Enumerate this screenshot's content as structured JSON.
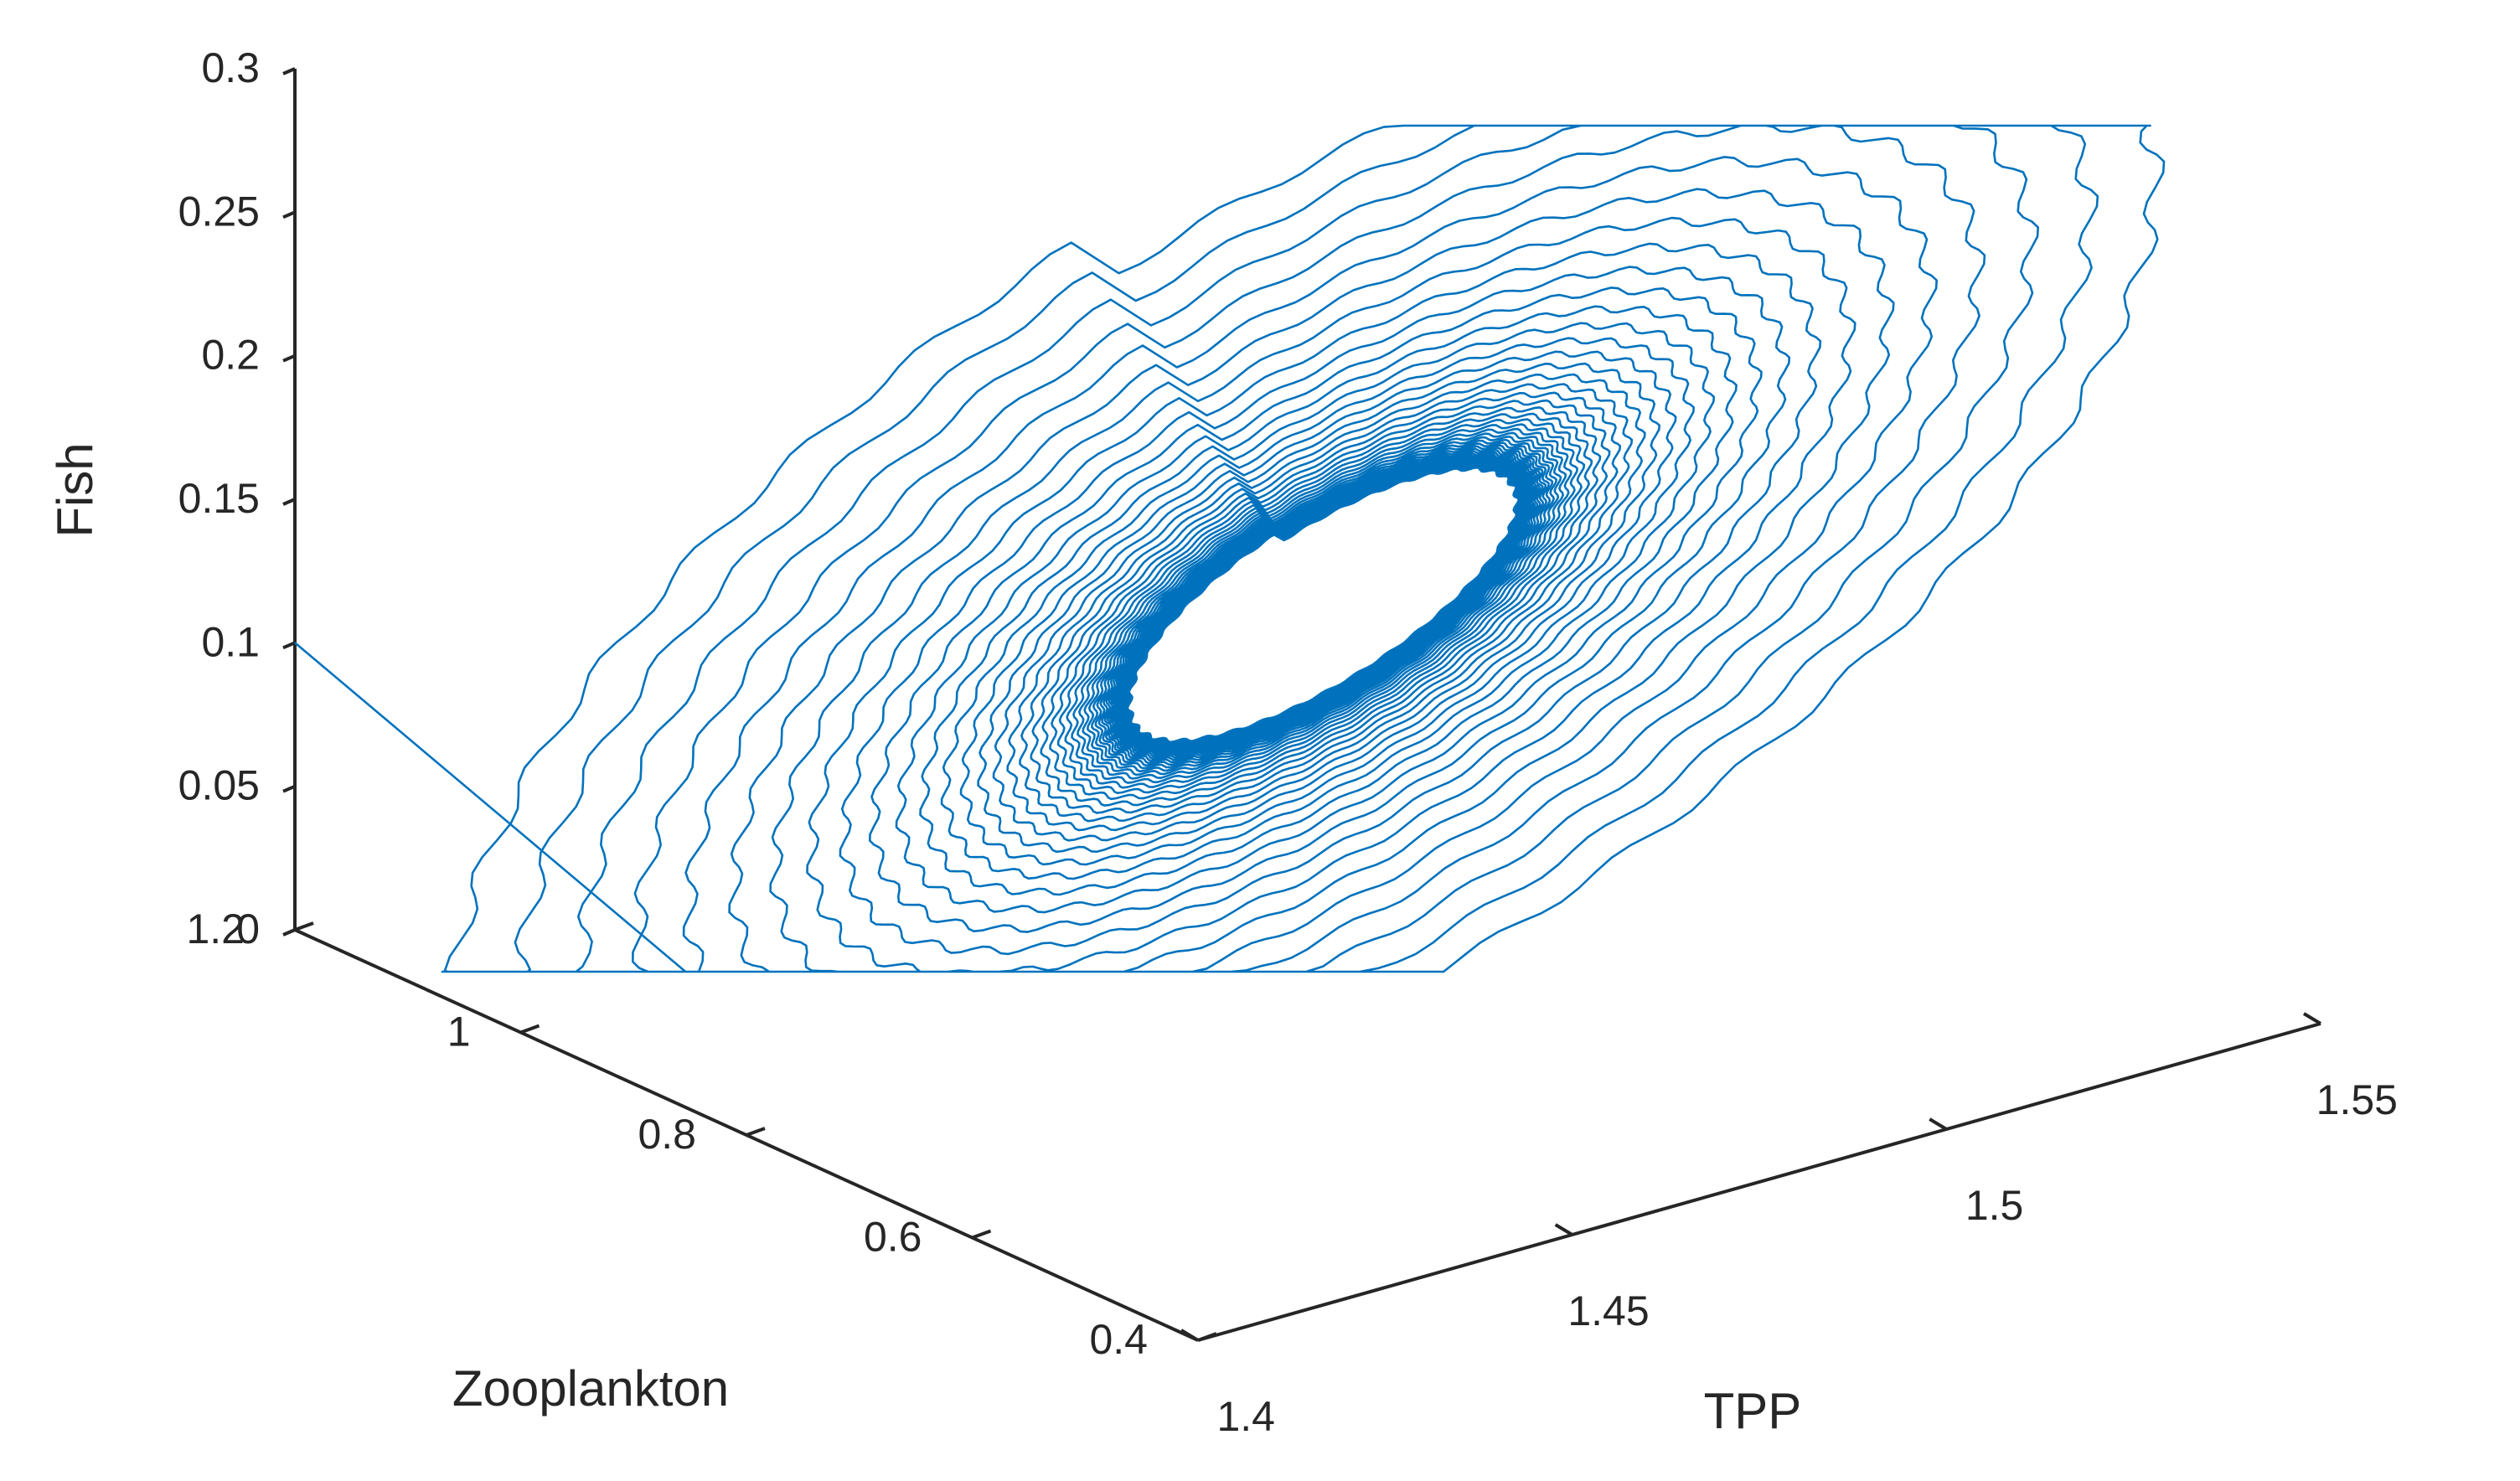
{
  "chart_data": {
    "type": "line",
    "projection": "3d",
    "xlabel": "TPP",
    "ylabel": "Zooplankton",
    "zlabel": "Fish",
    "xlim": [
      1.4,
      1.55
    ],
    "ylim": [
      0.4,
      1.2
    ],
    "zlim": [
      0,
      0.3
    ],
    "x_ticks": [
      "1.4",
      "1.45",
      "1.5",
      "1.55"
    ],
    "y_ticks": [
      "0.4",
      "0.6",
      "0.8",
      "1",
      "1.2"
    ],
    "z_ticks": [
      "0",
      "0.05",
      "0.1",
      "0.15",
      "0.2",
      "0.25",
      "0.3"
    ],
    "grid": false,
    "legend": "none",
    "series": [
      {
        "color": "#0072BD",
        "description": "spiral trajectory converging to limit cycle",
        "start": {
          "x": 1.4,
          "y": 1.2,
          "z": 0.1
        },
        "limit_cycle_center": {
          "x": 1.48,
          "y": 0.8,
          "z": 0.12
        },
        "revolutions": 60
      }
    ]
  }
}
